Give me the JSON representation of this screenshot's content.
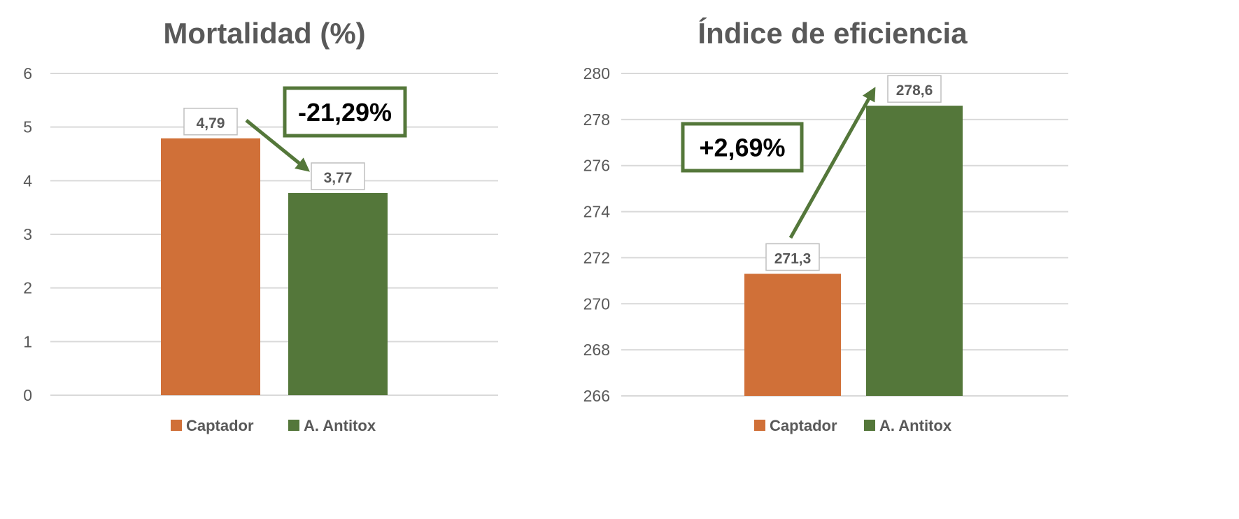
{
  "colors": {
    "captador": "#D07038",
    "antitox": "#54773A",
    "annotation": "#54773A",
    "text": "#595959",
    "grid": "#D9D9D9"
  },
  "chart_data": [
    {
      "type": "bar",
      "title": "Mortalidad (%)",
      "categories": [
        "Captador",
        "A. Antitox"
      ],
      "values": [
        4.79,
        3.77
      ],
      "data_labels": [
        "4,79",
        "3,77"
      ],
      "ylim": [
        0,
        6
      ],
      "yticks": [
        0,
        1,
        2,
        3,
        4,
        5,
        6
      ],
      "ytick_labels": [
        "0",
        "1",
        "2",
        "3",
        "4",
        "5",
        "6"
      ],
      "grid": true,
      "legend": "bottom",
      "legend_labels": [
        "Captador",
        "A. Antitox"
      ],
      "annotation": "-21,29%",
      "xlabel": "",
      "ylabel": ""
    },
    {
      "type": "bar",
      "title": "Índice de eficiencia",
      "categories": [
        "Captador",
        "A. Antitox"
      ],
      "values": [
        271.3,
        278.6
      ],
      "data_labels": [
        "271,3",
        "278,6"
      ],
      "ylim": [
        266,
        280
      ],
      "yticks": [
        266,
        268,
        270,
        272,
        274,
        276,
        278,
        280
      ],
      "ytick_labels": [
        "266",
        "268",
        "270",
        "272",
        "274",
        "276",
        "278",
        "280"
      ],
      "grid": true,
      "legend": "bottom",
      "legend_labels": [
        "Captador",
        "A. Antitox"
      ],
      "annotation": "+2,69%",
      "xlabel": "",
      "ylabel": ""
    }
  ]
}
